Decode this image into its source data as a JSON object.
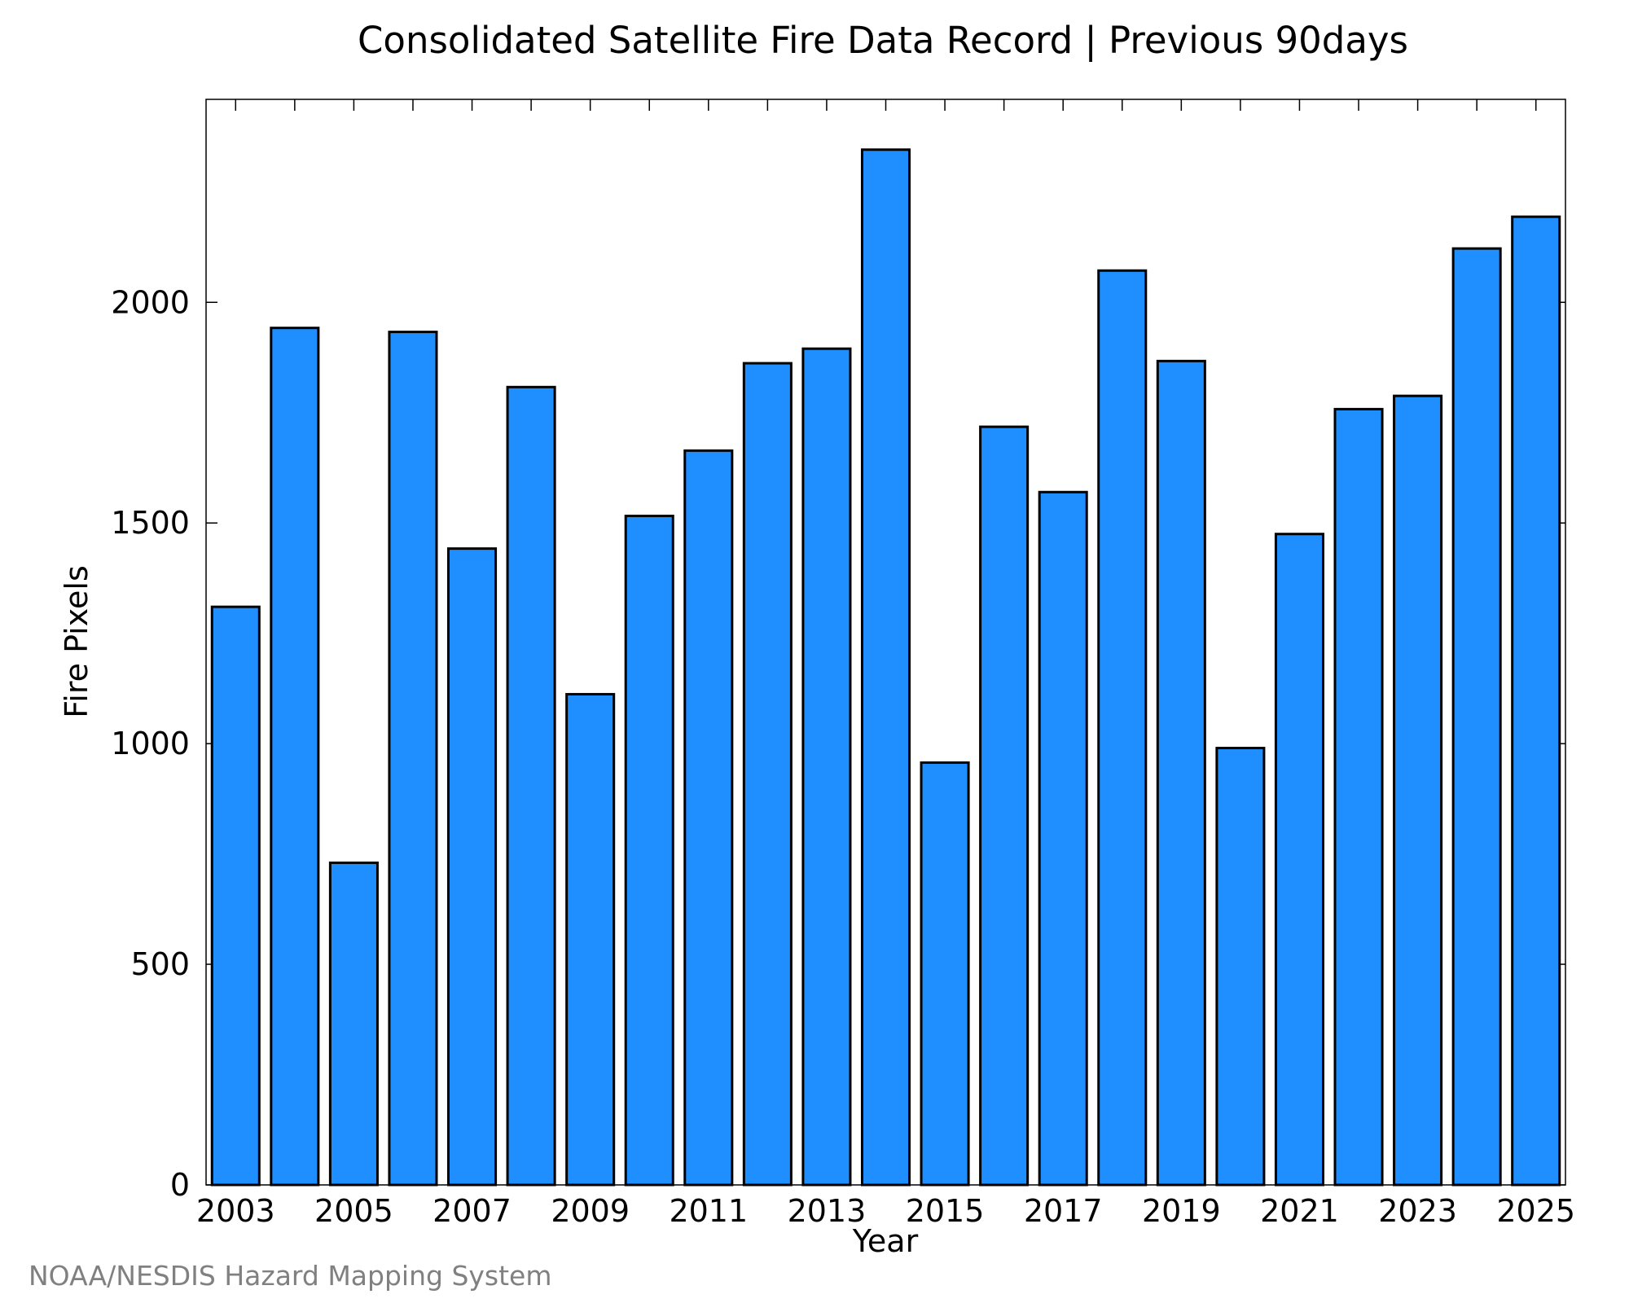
{
  "chart_data": {
    "type": "bar",
    "title": "Consolidated Satellite Fire Data Record | Previous 90days",
    "xlabel": "Year",
    "ylabel": "Fire Pixels",
    "categories": [
      "2003",
      "2004",
      "2005",
      "2006",
      "2007",
      "2008",
      "2009",
      "2010",
      "2011",
      "2012",
      "2013",
      "2014",
      "2015",
      "2016",
      "2017",
      "2018",
      "2019",
      "2020",
      "2021",
      "2022",
      "2023",
      "2024",
      "2025"
    ],
    "x_tick_labels": [
      "2003",
      "2005",
      "2007",
      "2009",
      "2011",
      "2013",
      "2015",
      "2017",
      "2019",
      "2021",
      "2023",
      "2025"
    ],
    "values": [
      1310,
      1942,
      730,
      1933,
      1442,
      1808,
      1112,
      1516,
      1664,
      1862,
      1895,
      2346,
      957,
      1718,
      1570,
      2072,
      1867,
      990,
      1475,
      1758,
      1788,
      2122,
      2194
    ],
    "ylim": [
      0,
      2460
    ],
    "y_ticks": [
      0,
      500,
      1000,
      1500,
      2000
    ],
    "y_tick_labels": [
      "0",
      "500",
      "1000",
      "1500",
      "2000"
    ],
    "grid": false,
    "bar_color": "#1f8fff",
    "bar_edge_color": "#000000"
  },
  "credit": "NOAA/NESDIS Hazard Mapping System"
}
